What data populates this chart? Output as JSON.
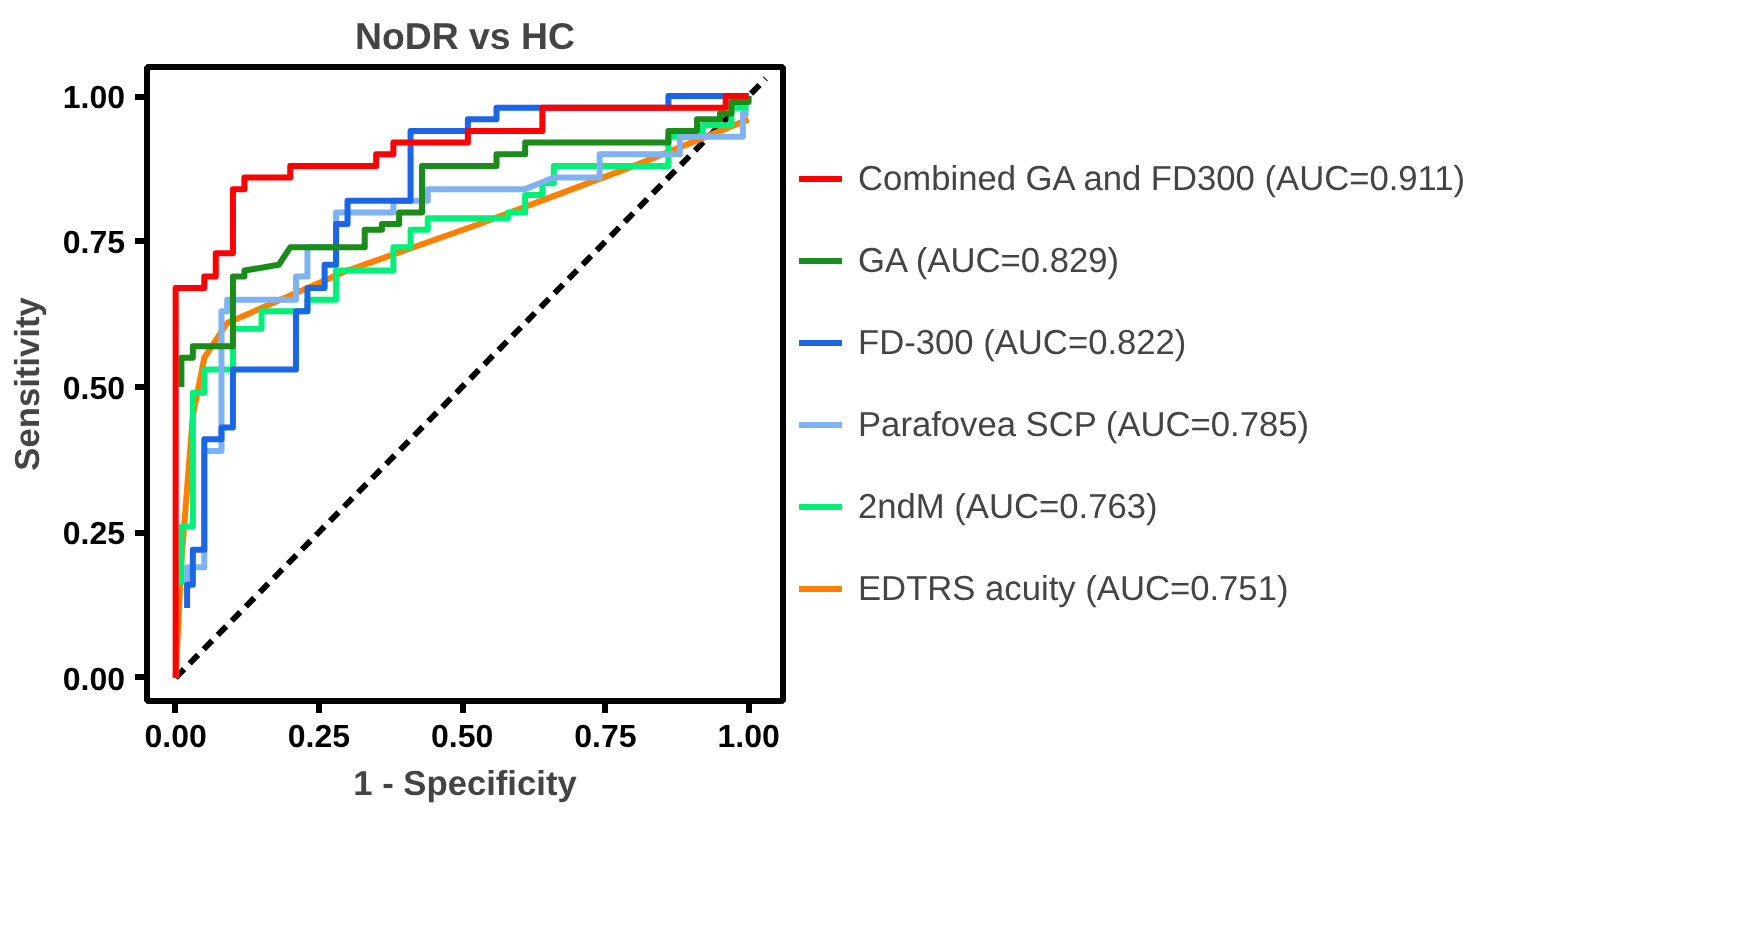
{
  "chart_data": {
    "type": "line",
    "title": "NoDR vs HC",
    "xlabel": "1 - Specificity",
    "ylabel": "Sensitivity",
    "xlim": [
      -0.05,
      1.06
    ],
    "ylim": [
      -0.04,
      1.05
    ],
    "xticks": [
      {
        "value": 0,
        "label": "0.00"
      },
      {
        "value": 0.25,
        "label": "0.25"
      },
      {
        "value": 0.5,
        "label": "0.50"
      },
      {
        "value": 0.75,
        "label": "0.75"
      },
      {
        "value": 1,
        "label": "1.00"
      }
    ],
    "yticks": [
      {
        "value": 0,
        "label": "0.00"
      },
      {
        "value": 0.25,
        "label": "0.25"
      },
      {
        "value": 0.5,
        "label": "0.50"
      },
      {
        "value": 0.75,
        "label": "0.75"
      },
      {
        "value": 1,
        "label": "1.00"
      }
    ],
    "grid": false,
    "legend": "right",
    "marker": "none",
    "series": [
      {
        "type": "line",
        "line_style": "dashed",
        "color": "#000000",
        "x": [
          0,
          1.03
        ],
        "values": [
          0,
          1.03
        ]
      },
      {
        "name": "EDTRS acuity (AUC=0.751)",
        "color": "#ff8000",
        "x": [
          0,
          0.01,
          0.03,
          0.05,
          0.09,
          0.3,
          0.53,
          0.8,
          1
        ],
        "values": [
          0,
          0.2,
          0.45,
          0.55,
          0.61,
          0.7,
          0.78,
          0.88,
          0.96
        ]
      },
      {
        "name": "2ndM (AUC=0.763)",
        "color": "#00f07a",
        "x": [
          0.01,
          0.01,
          0.03,
          0.03,
          0.05,
          0.05,
          0.1,
          0.1,
          0.15,
          0.15,
          0.23,
          0.23,
          0.28,
          0.28,
          0.38,
          0.38,
          0.41,
          0.41,
          0.44,
          0.44,
          0.58,
          0.58,
          0.61,
          0.61,
          0.64,
          0.64,
          0.66,
          0.66,
          0.86,
          0.86,
          0.92,
          0.92,
          0.97,
          0.97,
          1
        ],
        "values": [
          0.16,
          0.26,
          0.26,
          0.49,
          0.49,
          0.53,
          0.53,
          0.6,
          0.6,
          0.63,
          0.63,
          0.65,
          0.65,
          0.7,
          0.7,
          0.74,
          0.74,
          0.77,
          0.77,
          0.79,
          0.79,
          0.8,
          0.8,
          0.83,
          0.83,
          0.85,
          0.85,
          0.88,
          0.88,
          0.93,
          0.93,
          0.95,
          0.95,
          0.98,
          0.98
        ]
      },
      {
        "name": "Parafovea SCP (AUC=0.785)",
        "color": "#7fb2f0",
        "x": [
          0.02,
          0.02,
          0.05,
          0.05,
          0.08,
          0.08,
          0.09,
          0.09,
          0.21,
          0.21,
          0.23,
          0.23,
          0.28,
          0.28,
          0.38,
          0.38,
          0.44,
          0.44,
          0.61,
          0.66,
          0.74,
          0.74,
          0.88,
          0.88,
          0.99,
          0.99,
          1
        ],
        "values": [
          0.15,
          0.19,
          0.19,
          0.39,
          0.39,
          0.63,
          0.63,
          0.65,
          0.65,
          0.69,
          0.69,
          0.74,
          0.74,
          0.8,
          0.8,
          0.82,
          0.82,
          0.84,
          0.84,
          0.86,
          0.86,
          0.9,
          0.9,
          0.93,
          0.93,
          0.97,
          0.97
        ]
      },
      {
        "name": "FD-300 (AUC=0.822)",
        "color": "#1a66e6",
        "x": [
          0.02,
          0.02,
          0.03,
          0.03,
          0.05,
          0.05,
          0.08,
          0.08,
          0.1,
          0.1,
          0.21,
          0.21,
          0.23,
          0.23,
          0.26,
          0.26,
          0.28,
          0.28,
          0.3,
          0.3,
          0.41,
          0.41,
          0.51,
          0.51,
          0.56,
          0.56,
          0.86,
          0.86,
          1
        ],
        "values": [
          0.12,
          0.16,
          0.16,
          0.22,
          0.22,
          0.41,
          0.41,
          0.43,
          0.43,
          0.53,
          0.53,
          0.63,
          0.63,
          0.67,
          0.67,
          0.71,
          0.71,
          0.78,
          0.78,
          0.82,
          0.82,
          0.94,
          0.94,
          0.96,
          0.96,
          0.98,
          0.98,
          1,
          1
        ]
      },
      {
        "name": "GA (AUC=0.829)",
        "color": "#1a8c1a",
        "x": [
          0.01,
          0.01,
          0.03,
          0.03,
          0.1,
          0.1,
          0.12,
          0.12,
          0.18,
          0.2,
          0.33,
          0.33,
          0.36,
          0.36,
          0.39,
          0.39,
          0.43,
          0.43,
          0.56,
          0.56,
          0.61,
          0.61,
          0.86,
          0.86,
          0.91,
          0.91,
          0.95,
          0.95,
          0.97,
          0.97,
          1,
          1
        ],
        "values": [
          0.5,
          0.55,
          0.55,
          0.57,
          0.57,
          0.69,
          0.69,
          0.7,
          0.71,
          0.74,
          0.74,
          0.77,
          0.77,
          0.78,
          0.78,
          0.8,
          0.8,
          0.88,
          0.88,
          0.9,
          0.9,
          0.92,
          0.92,
          0.94,
          0.94,
          0.96,
          0.96,
          0.97,
          0.97,
          0.99,
          0.99,
          1
        ]
      },
      {
        "name": "Combined GA and FD300 (AUC=0.911)",
        "color": "#ff0000",
        "x": [
          0,
          0,
          0.05,
          0.05,
          0.07,
          0.07,
          0.1,
          0.1,
          0.12,
          0.12,
          0.2,
          0.2,
          0.35,
          0.35,
          0.38,
          0.38,
          0.51,
          0.51,
          0.64,
          0.64,
          0.96,
          0.96,
          1
        ],
        "values": [
          0,
          0.67,
          0.67,
          0.69,
          0.69,
          0.73,
          0.73,
          0.84,
          0.84,
          0.86,
          0.86,
          0.88,
          0.88,
          0.9,
          0.9,
          0.92,
          0.92,
          0.94,
          0.94,
          0.98,
          0.98,
          1,
          1
        ]
      }
    ]
  }
}
